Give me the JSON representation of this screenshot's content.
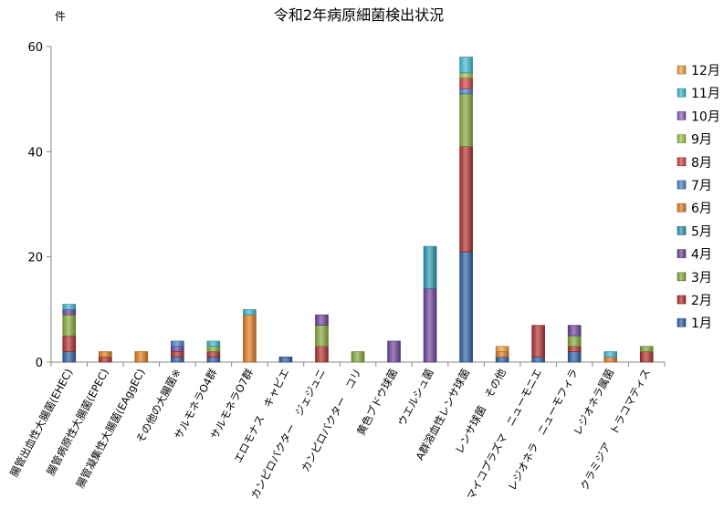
{
  "chart_data": {
    "type": "bar",
    "stacked": true,
    "title": "令和2年病原細菌検出状況",
    "ylabel": "件",
    "xlabel": "",
    "ylim": [
      0,
      60
    ],
    "yticks": [
      0,
      20,
      40,
      60
    ],
    "grid": false,
    "legend_position": "right",
    "categories": [
      "腸管出血性大腸菌(EHEC)",
      "腸管病原性大腸菌(EPEC)",
      "腸管凝集性大腸菌(EAggEC)",
      "その他の大腸菌※",
      "サルモネラO4群",
      "サルモネラO7群",
      "エロモナス　キャビエ",
      "カンピロバクター　ジェジュニ",
      "カンピロバクター　コリ",
      "黄色ブドウ球菌",
      "ウエルシュ菌",
      "A群溶血性レンサ球菌",
      "レンサ球菌　その他",
      "マイコプラズマ　ニューモニエ",
      "レジオネラ　ニューモフィラ",
      "レジオネラ属菌",
      "クラミジア　トラコマティス"
    ],
    "series": [
      {
        "name": "1月",
        "color": "#2e5fa6",
        "values": [
          2,
          0,
          0,
          1,
          1,
          0,
          1,
          0,
          0,
          0,
          0,
          21,
          1,
          1,
          2,
          0,
          0
        ]
      },
      {
        "name": "2月",
        "color": "#b03030",
        "values": [
          3,
          1,
          0,
          1,
          1,
          0,
          0,
          3,
          0,
          0,
          0,
          20,
          0,
          6,
          1,
          0,
          2
        ]
      },
      {
        "name": "3月",
        "color": "#86a83a",
        "values": [
          4,
          0,
          0,
          0,
          1,
          0,
          0,
          4,
          2,
          0,
          0,
          10,
          0,
          0,
          2,
          0,
          1
        ]
      },
      {
        "name": "4月",
        "color": "#6b449a",
        "values": [
          1,
          0,
          0,
          1,
          0,
          0,
          0,
          2,
          0,
          4,
          14,
          0,
          0,
          0,
          2,
          0,
          0
        ]
      },
      {
        "name": "5月",
        "color": "#2a98b0",
        "values": [
          0,
          0,
          0,
          0,
          0,
          0,
          0,
          0,
          0,
          0,
          8,
          0,
          0,
          0,
          0,
          0,
          0
        ]
      },
      {
        "name": "6月",
        "color": "#e07a20",
        "values": [
          0,
          1,
          2,
          0,
          0,
          9,
          0,
          0,
          0,
          0,
          0,
          0,
          1,
          0,
          0,
          1,
          0
        ]
      },
      {
        "name": "7月",
        "color": "#4a7fc8",
        "values": [
          0,
          0,
          0,
          1,
          0,
          0,
          0,
          0,
          0,
          0,
          0,
          1,
          0,
          0,
          0,
          0,
          0
        ]
      },
      {
        "name": "8月",
        "color": "#d04040",
        "values": [
          0,
          0,
          0,
          0,
          0,
          0,
          0,
          0,
          0,
          0,
          0,
          2,
          0,
          0,
          0,
          0,
          0
        ]
      },
      {
        "name": "9月",
        "color": "#9ec24e",
        "values": [
          0,
          0,
          0,
          0,
          0,
          0,
          0,
          0,
          0,
          0,
          0,
          1,
          0,
          0,
          0,
          0,
          0
        ]
      },
      {
        "name": "10月",
        "color": "#8a5fbd",
        "values": [
          0,
          0,
          0,
          0,
          0,
          0,
          0,
          0,
          0,
          0,
          0,
          0,
          0,
          0,
          0,
          0,
          0
        ]
      },
      {
        "name": "11月",
        "color": "#3eb8d0",
        "values": [
          1,
          0,
          0,
          0,
          1,
          1,
          0,
          0,
          0,
          0,
          0,
          3,
          0,
          0,
          0,
          1,
          0
        ]
      },
      {
        "name": "12月",
        "color": "#f0a040",
        "values": [
          0,
          0,
          0,
          0,
          0,
          0,
          0,
          0,
          0,
          0,
          0,
          0,
          1,
          0,
          0,
          0,
          0
        ]
      }
    ]
  }
}
